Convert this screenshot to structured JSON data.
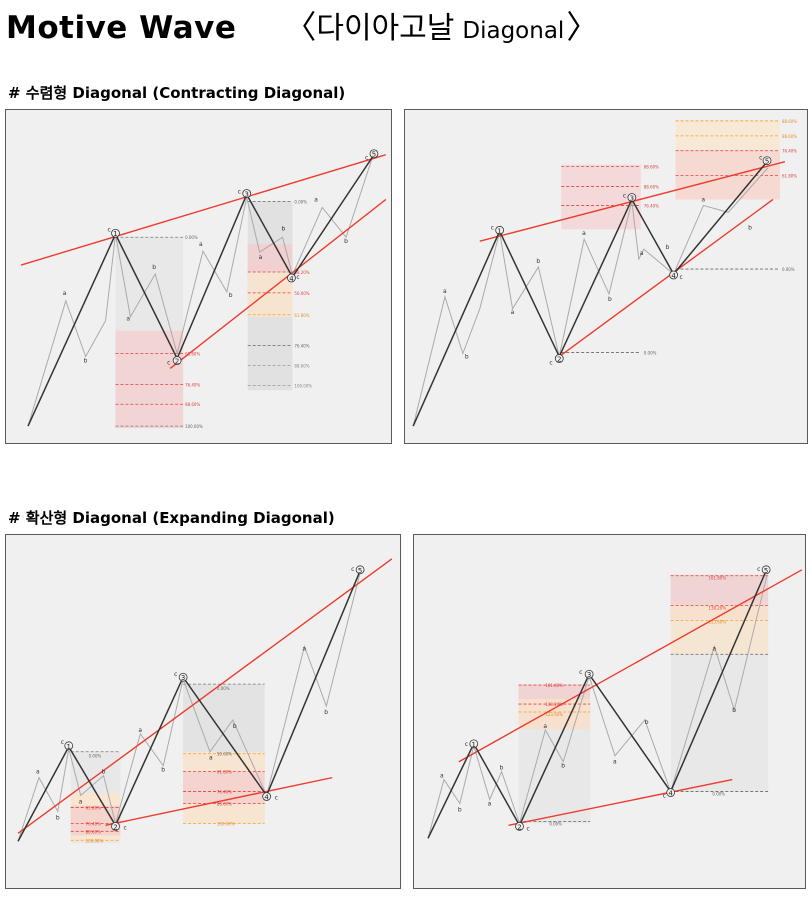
{
  "header": {
    "title": "Motive Wave",
    "subtitle_open": "〈",
    "subtitle_ko": "다이아고날",
    "subtitle_en": "Diagonal",
    "subtitle_close": "〉"
  },
  "sections": [
    {
      "heading": "# 수렴형 Diagonal (Contracting Diagonal)"
    },
    {
      "heading": "# 확산형 Diagonal (Expanding Diagonal)"
    }
  ],
  "colors": {
    "panel_bg": "#f0f0f0",
    "trend_line": "#ee3b2c",
    "wave_main": "#333333",
    "wave_sub": "#aaaaaa",
    "zone_red": "#f4cccc",
    "zone_orange": "#fbe5cc",
    "zone_gray": "#dddddd"
  },
  "panels": [
    {
      "id": "contracting-1",
      "nodes": [
        "1",
        "2",
        "3",
        "4",
        "5"
      ],
      "fib_labels": [
        "0.00%",
        "61.80%",
        "76.40%",
        "88.60%",
        "100.00%",
        "0.00%",
        "38.20%",
        "50.00%",
        "61.80%",
        "76.40%",
        "88.60%",
        "100.00%"
      ]
    },
    {
      "id": "contracting-2",
      "nodes": [
        "1",
        "2",
        "3",
        "4",
        "5"
      ],
      "fib_labels": [
        "88.60%",
        "88.60%",
        "76.40%",
        "0.00%",
        "88.60%",
        "88.60%",
        "76.40%",
        "61.80%",
        "0.00%"
      ]
    },
    {
      "id": "expanding-1",
      "nodes": [
        "1",
        "2",
        "3",
        "4",
        "5"
      ],
      "fib_labels": [
        "0.00%",
        "61.80%",
        "76.40%",
        "88.60%",
        "100.00%",
        "0.00%",
        "50.00%",
        "61.80%",
        "76.40%",
        "88.60%",
        "100.00%"
      ]
    },
    {
      "id": "expanding-2",
      "nodes": [
        "1",
        "2",
        "3",
        "4",
        "5"
      ],
      "fib_labels": [
        "161.80%",
        "138.20%",
        "123.60%",
        "0.00%",
        "161.80%",
        "138.20%",
        "123.60%",
        "0.00%"
      ]
    }
  ]
}
